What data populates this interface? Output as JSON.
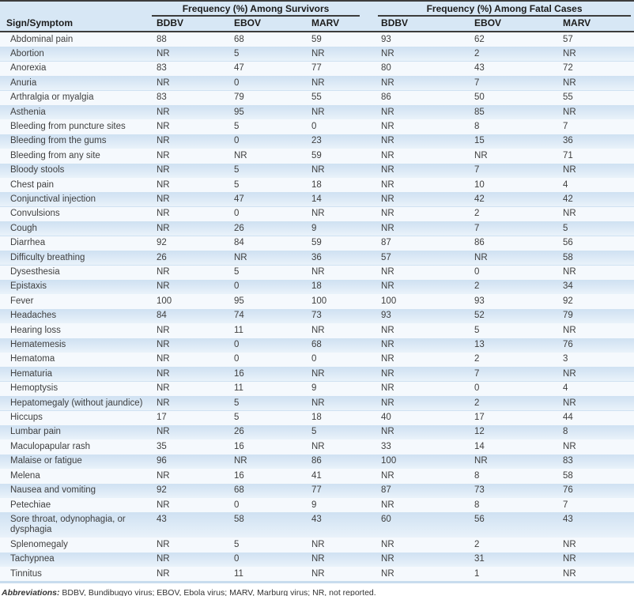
{
  "table": {
    "col1_header": "Sign/Symptom",
    "groups": [
      {
        "label": "Frequency (%) Among Survivors",
        "columns": [
          "BDBV",
          "EBOV",
          "MARV"
        ]
      },
      {
        "label": "Frequency (%) Among Fatal Cases",
        "columns": [
          "BDBV",
          "EBOV",
          "MARV"
        ]
      }
    ],
    "rows": [
      {
        "symptom": "Abdominal pain",
        "survivors": [
          "88",
          "68",
          "59"
        ],
        "fatal": [
          "93",
          "62",
          "57"
        ]
      },
      {
        "symptom": "Abortion",
        "survivors": [
          "NR",
          "5",
          "NR"
        ],
        "fatal": [
          "NR",
          "2",
          "NR"
        ]
      },
      {
        "symptom": "Anorexia",
        "survivors": [
          "83",
          "47",
          "77"
        ],
        "fatal": [
          "80",
          "43",
          "72"
        ]
      },
      {
        "symptom": "Anuria",
        "survivors": [
          "NR",
          "0",
          "NR"
        ],
        "fatal": [
          "NR",
          "7",
          "NR"
        ]
      },
      {
        "symptom": "Arthralgia or myalgia",
        "survivors": [
          "83",
          "79",
          "55"
        ],
        "fatal": [
          "86",
          "50",
          "55"
        ]
      },
      {
        "symptom": "Asthenia",
        "survivors": [
          "NR",
          "95",
          "NR"
        ],
        "fatal": [
          "NR",
          "85",
          "NR"
        ]
      },
      {
        "symptom": "Bleeding from puncture sites",
        "survivors": [
          "NR",
          "5",
          "0"
        ],
        "fatal": [
          "NR",
          "8",
          "7"
        ]
      },
      {
        "symptom": "Bleeding from the gums",
        "survivors": [
          "NR",
          "0",
          "23"
        ],
        "fatal": [
          "NR",
          "15",
          "36"
        ]
      },
      {
        "symptom": "Bleeding from any site",
        "survivors": [
          "NR",
          "NR",
          "59"
        ],
        "fatal": [
          "NR",
          "NR",
          "71"
        ]
      },
      {
        "symptom": "Bloody stools",
        "survivors": [
          "NR",
          "5",
          "NR"
        ],
        "fatal": [
          "NR",
          "7",
          "NR"
        ]
      },
      {
        "symptom": "Chest pain",
        "survivors": [
          "NR",
          "5",
          "18"
        ],
        "fatal": [
          "NR",
          "10",
          "4"
        ]
      },
      {
        "symptom": "Conjunctival injection",
        "survivors": [
          "NR",
          "47",
          "14"
        ],
        "fatal": [
          "NR",
          "42",
          "42"
        ]
      },
      {
        "symptom": "Convulsions",
        "survivors": [
          "NR",
          "0",
          "NR"
        ],
        "fatal": [
          "NR",
          "2",
          "NR"
        ]
      },
      {
        "symptom": "Cough",
        "survivors": [
          "NR",
          "26",
          "9"
        ],
        "fatal": [
          "NR",
          "7",
          "5"
        ]
      },
      {
        "symptom": "Diarrhea",
        "survivors": [
          "92",
          "84",
          "59"
        ],
        "fatal": [
          "87",
          "86",
          "56"
        ]
      },
      {
        "symptom": "Difficulty breathing",
        "survivors": [
          "26",
          "NR",
          "36"
        ],
        "fatal": [
          "57",
          "NR",
          "58"
        ]
      },
      {
        "symptom": "Dysesthesia",
        "survivors": [
          "NR",
          "5",
          "NR"
        ],
        "fatal": [
          "NR",
          "0",
          "NR"
        ]
      },
      {
        "symptom": "Epistaxis",
        "survivors": [
          "NR",
          "0",
          "18"
        ],
        "fatal": [
          "NR",
          "2",
          "34"
        ]
      },
      {
        "symptom": "Fever",
        "survivors": [
          "100",
          "95",
          "100"
        ],
        "fatal": [
          "100",
          "93",
          "92"
        ]
      },
      {
        "symptom": "Headaches",
        "survivors": [
          "84",
          "74",
          "73"
        ],
        "fatal": [
          "93",
          "52",
          "79"
        ]
      },
      {
        "symptom": "Hearing loss",
        "survivors": [
          "NR",
          "11",
          "NR"
        ],
        "fatal": [
          "NR",
          "5",
          "NR"
        ]
      },
      {
        "symptom": "Hematemesis",
        "survivors": [
          "NR",
          "0",
          "68"
        ],
        "fatal": [
          "NR",
          "13",
          "76"
        ]
      },
      {
        "symptom": "Hematoma",
        "survivors": [
          "NR",
          "0",
          "0"
        ],
        "fatal": [
          "NR",
          "2",
          "3"
        ]
      },
      {
        "symptom": "Hematuria",
        "survivors": [
          "NR",
          "16",
          "NR"
        ],
        "fatal": [
          "NR",
          "7",
          "NR"
        ]
      },
      {
        "symptom": "Hemoptysis",
        "survivors": [
          "NR",
          "11",
          "9"
        ],
        "fatal": [
          "NR",
          "0",
          "4"
        ]
      },
      {
        "symptom": "Hepatomegaly (without jaundice)",
        "survivors": [
          "NR",
          "5",
          "NR"
        ],
        "fatal": [
          "NR",
          "2",
          "NR"
        ]
      },
      {
        "symptom": "Hiccups",
        "survivors": [
          "17",
          "5",
          "18"
        ],
        "fatal": [
          "40",
          "17",
          "44"
        ]
      },
      {
        "symptom": "Lumbar pain",
        "survivors": [
          "NR",
          "26",
          "5"
        ],
        "fatal": [
          "NR",
          "12",
          "8"
        ]
      },
      {
        "symptom": "Maculopapular rash",
        "survivors": [
          "35",
          "16",
          "NR"
        ],
        "fatal": [
          "33",
          "14",
          "NR"
        ]
      },
      {
        "symptom": "Malaise or fatigue",
        "survivors": [
          "96",
          "NR",
          "86"
        ],
        "fatal": [
          "100",
          "NR",
          "83"
        ]
      },
      {
        "symptom": "Melena",
        "survivors": [
          "NR",
          "16",
          "41"
        ],
        "fatal": [
          "NR",
          "8",
          "58"
        ]
      },
      {
        "symptom": "Nausea and vomiting",
        "survivors": [
          "92",
          "68",
          "77"
        ],
        "fatal": [
          "87",
          "73",
          "76"
        ]
      },
      {
        "symptom": "Petechiae",
        "survivors": [
          "NR",
          "0",
          "9"
        ],
        "fatal": [
          "NR",
          "8",
          "7"
        ]
      },
      {
        "symptom": "Sore throat, odynophagia, or dysphagia",
        "survivors": [
          "43",
          "58",
          "43"
        ],
        "fatal": [
          "60",
          "56",
          "43"
        ]
      },
      {
        "symptom": "Splenomegaly",
        "survivors": [
          "NR",
          "5",
          "NR"
        ],
        "fatal": [
          "NR",
          "2",
          "NR"
        ]
      },
      {
        "symptom": "Tachypnea",
        "survivors": [
          "NR",
          "0",
          "NR"
        ],
        "fatal": [
          "NR",
          "31",
          "NR"
        ]
      },
      {
        "symptom": "Tinnitus",
        "survivors": [
          "NR",
          "11",
          "NR"
        ],
        "fatal": [
          "NR",
          "1",
          "NR"
        ]
      }
    ],
    "footnote": {
      "label": "Abbreviations:",
      "text": " BDBV, Bundibugyo virus; EBOV, Ebola virus; MARV, Marburg virus; NR, not reported."
    }
  },
  "colors": {
    "row_stripe_blue": "#d3e4f3",
    "row_stripe_pale": "#f5f9fd",
    "header_background": "#d7e7f5",
    "rule_dark": "#3c3c3c",
    "table_bottom_rule": "#c8dcee",
    "body_text": "#404040"
  }
}
